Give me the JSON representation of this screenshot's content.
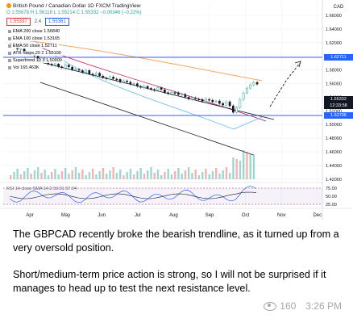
{
  "chart": {
    "title_line": "British Pound / Canadian Dollar  1D  FXCM  TradingView",
    "ohlc_line": "O 1.55678  H 1.56118  L 1.55214  C 1.55332  −0.00346 (−0.22%)",
    "sell_price": "1.55337",
    "spread": "2.4",
    "buy_price": "1.55361",
    "indicators": [
      "EMA 200 close  1.56840",
      "EMA 100 close  1.53165",
      "EMA 50 close  1.52711",
      "ATR Stops  20 2  1.55100",
      "Supertrend 10 3  1.50900",
      "Vol  165.463K"
    ],
    "currency": "CAD",
    "price_ticks": [
      "1.66000",
      "1.64000",
      "1.62000",
      "1.60000",
      "1.58000",
      "1.56000",
      "1.54000",
      "1.52000",
      "1.50000",
      "1.48000",
      "1.46000",
      "1.44000",
      "1.42000"
    ],
    "price_labels": [
      {
        "text": "1.62711",
        "color": "#2962ff"
      },
      {
        "text": "1.55332",
        "color": "#131722"
      },
      {
        "text": "12:33:58",
        "color": "#131722"
      },
      {
        "text": "1.52706",
        "color": "#2962ff"
      }
    ],
    "rsi_label": "RSI 14 close SMA 14 2  59.51  57.04",
    "rsi_ticks": [
      "75.00",
      "50.00",
      "25.00"
    ],
    "months": [
      "Apr",
      "May",
      "Jun",
      "Jul",
      "Aug",
      "Sep",
      "Oct",
      "Nov",
      "Dec"
    ]
  },
  "caption": {
    "paragraph_1": "The GBPCAD recently broke the bearish trendline, as it turned up from a very oversold position.",
    "paragraph_2": "Short/medium-term price action is strong, so I will not be surprised if it manages to head up to test the next resistance level."
  },
  "footer": {
    "views": "160",
    "time": "3:26 PM"
  },
  "colors": {
    "up": "#26a69a",
    "down": "#131722",
    "resistance": "#2962ff",
    "ema200": "#f0a860",
    "ema100": "#c2185b",
    "trendline": "#131722"
  }
}
